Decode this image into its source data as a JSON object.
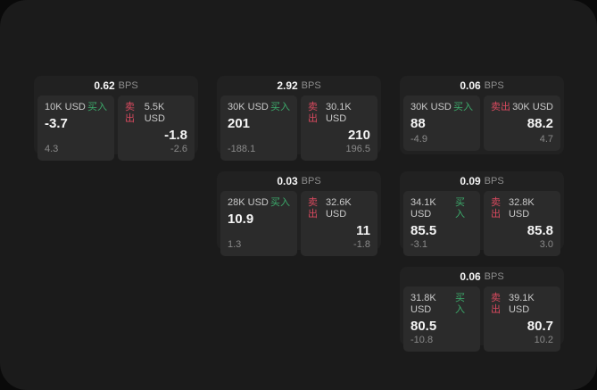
{
  "colors": {
    "page_bg": "#0a0a0a",
    "panel_bg": "#1b1b1b",
    "card_bg": "#212121",
    "tile_bg": "#2b2b2b",
    "buy_green": "#3cab6b",
    "sell_red": "#d94a5f",
    "text_primary": "#f5f5f5",
    "text_muted": "#8a8a8a"
  },
  "labels": {
    "bps": "BPS",
    "buy": "买入",
    "sell": "卖出"
  },
  "cards": [
    {
      "bps": "0.62",
      "buy": {
        "size": "10K USD",
        "value": "-3.7",
        "delta": "4.3"
      },
      "sell": {
        "size": "5.5K USD",
        "value": "-1.8",
        "delta": "-2.6"
      }
    },
    {
      "bps": "2.92",
      "buy": {
        "size": "30K USD",
        "value": "201",
        "delta": "-188.1"
      },
      "sell": {
        "size": "30.1K USD",
        "value": "210",
        "delta": "196.5"
      }
    },
    {
      "bps": "0.06",
      "buy": {
        "size": "30K USD",
        "value": "88",
        "delta": "-4.9"
      },
      "sell": {
        "size": "30K USD",
        "value": "88.2",
        "delta": "4.7"
      }
    },
    {
      "bps": "0.03",
      "buy": {
        "size": "28K USD",
        "value": "10.9",
        "delta": "1.3"
      },
      "sell": {
        "size": "32.6K USD",
        "value": "11",
        "delta": "-1.8"
      }
    },
    {
      "bps": "0.09",
      "buy": {
        "size": "34.1K USD",
        "value": "85.5",
        "delta": "-3.1"
      },
      "sell": {
        "size": "32.8K USD",
        "value": "85.8",
        "delta": "3.0"
      }
    },
    {
      "bps": "0.06",
      "buy": {
        "size": "31.8K USD",
        "value": "80.5",
        "delta": "-10.8"
      },
      "sell": {
        "size": "39.1K USD",
        "value": "80.7",
        "delta": "10.2"
      }
    }
  ]
}
